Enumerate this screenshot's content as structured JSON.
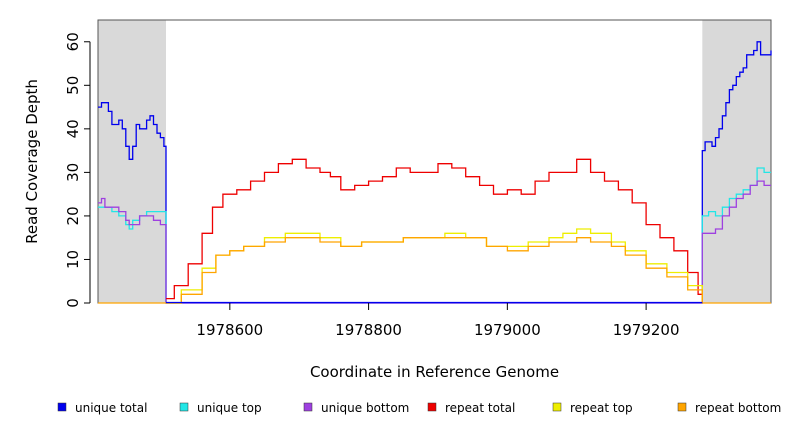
{
  "chart_data": {
    "type": "line",
    "title": "",
    "xlabel": "Coordinate in Reference Genome",
    "ylabel": "Read Coverage Depth",
    "xlim": [
      1978410,
      1979380
    ],
    "ylim": [
      0,
      65
    ],
    "x_ticks": [
      1978600,
      1978800,
      1979000,
      1979200
    ],
    "y_ticks": [
      0,
      10,
      20,
      30,
      40,
      50,
      60
    ],
    "shaded_regions": [
      {
        "x0": 1978410,
        "x1": 1978508
      },
      {
        "x0": 1979281,
        "x1": 1979380
      }
    ],
    "legend_position": "bottom",
    "series": [
      {
        "name": "unique total",
        "color": "#0000ee",
        "points": [
          [
            1978410,
            45
          ],
          [
            1978415,
            46
          ],
          [
            1978420,
            46
          ],
          [
            1978425,
            44
          ],
          [
            1978430,
            41
          ],
          [
            1978435,
            41
          ],
          [
            1978440,
            42
          ],
          [
            1978445,
            40
          ],
          [
            1978450,
            36
          ],
          [
            1978455,
            33
          ],
          [
            1978460,
            36
          ],
          [
            1978465,
            41
          ],
          [
            1978470,
            40
          ],
          [
            1978475,
            40
          ],
          [
            1978480,
            42
          ],
          [
            1978485,
            43
          ],
          [
            1978490,
            41
          ],
          [
            1978495,
            39
          ],
          [
            1978500,
            38
          ],
          [
            1978505,
            36
          ],
          [
            1978508,
            35
          ],
          [
            1978508,
            0
          ],
          [
            1979281,
            0
          ],
          [
            1979281,
            35
          ],
          [
            1979285,
            37
          ],
          [
            1979290,
            37
          ],
          [
            1979295,
            36
          ],
          [
            1979300,
            38
          ],
          [
            1979305,
            40
          ],
          [
            1979310,
            43
          ],
          [
            1979315,
            46
          ],
          [
            1979320,
            49
          ],
          [
            1979325,
            50
          ],
          [
            1979330,
            52
          ],
          [
            1979335,
            53
          ],
          [
            1979340,
            54
          ],
          [
            1979345,
            57
          ],
          [
            1979350,
            57
          ],
          [
            1979355,
            58
          ],
          [
            1979360,
            60
          ],
          [
            1979365,
            57
          ],
          [
            1979370,
            57
          ],
          [
            1979380,
            58
          ]
        ]
      },
      {
        "name": "unique top",
        "color": "#22e6e6",
        "points": [
          [
            1978410,
            22
          ],
          [
            1978420,
            22
          ],
          [
            1978430,
            21
          ],
          [
            1978440,
            20
          ],
          [
            1978450,
            18
          ],
          [
            1978455,
            17
          ],
          [
            1978460,
            19
          ],
          [
            1978470,
            20
          ],
          [
            1978480,
            21
          ],
          [
            1978490,
            21
          ],
          [
            1978500,
            21
          ],
          [
            1978508,
            20
          ],
          [
            1978508,
            0
          ],
          [
            1979281,
            0
          ],
          [
            1979281,
            20
          ],
          [
            1979290,
            21
          ],
          [
            1979300,
            20
          ],
          [
            1979310,
            22
          ],
          [
            1979320,
            24
          ],
          [
            1979330,
            25
          ],
          [
            1979340,
            26
          ],
          [
            1979350,
            27
          ],
          [
            1979360,
            31
          ],
          [
            1979370,
            30
          ],
          [
            1979380,
            30
          ]
        ]
      },
      {
        "name": "unique bottom",
        "color": "#9e40e0",
        "points": [
          [
            1978410,
            23
          ],
          [
            1978415,
            24
          ],
          [
            1978420,
            22
          ],
          [
            1978430,
            22
          ],
          [
            1978440,
            21
          ],
          [
            1978450,
            19
          ],
          [
            1978455,
            18
          ],
          [
            1978460,
            18
          ],
          [
            1978470,
            20
          ],
          [
            1978480,
            20
          ],
          [
            1978490,
            19
          ],
          [
            1978500,
            18
          ],
          [
            1978508,
            17
          ],
          [
            1978508,
            0
          ],
          [
            1979281,
            0
          ],
          [
            1979281,
            16
          ],
          [
            1979290,
            16
          ],
          [
            1979300,
            17
          ],
          [
            1979310,
            20
          ],
          [
            1979320,
            22
          ],
          [
            1979330,
            24
          ],
          [
            1979340,
            25
          ],
          [
            1979350,
            27
          ],
          [
            1979360,
            28
          ],
          [
            1979370,
            27
          ],
          [
            1979380,
            27
          ]
        ]
      },
      {
        "name": "repeat total",
        "color": "#ee0000",
        "points": [
          [
            1978508,
            1
          ],
          [
            1978520,
            4
          ],
          [
            1978540,
            9
          ],
          [
            1978560,
            16
          ],
          [
            1978575,
            22
          ],
          [
            1978590,
            25
          ],
          [
            1978610,
            26
          ],
          [
            1978630,
            28
          ],
          [
            1978650,
            30
          ],
          [
            1978670,
            32
          ],
          [
            1978690,
            33
          ],
          [
            1978710,
            31
          ],
          [
            1978730,
            30
          ],
          [
            1978745,
            29
          ],
          [
            1978760,
            26
          ],
          [
            1978780,
            27
          ],
          [
            1978800,
            28
          ],
          [
            1978820,
            29
          ],
          [
            1978840,
            31
          ],
          [
            1978860,
            30
          ],
          [
            1978880,
            30
          ],
          [
            1978900,
            32
          ],
          [
            1978920,
            31
          ],
          [
            1978940,
            29
          ],
          [
            1978960,
            27
          ],
          [
            1978980,
            25
          ],
          [
            1979000,
            26
          ],
          [
            1979020,
            25
          ],
          [
            1979040,
            28
          ],
          [
            1979060,
            30
          ],
          [
            1979080,
            30
          ],
          [
            1979100,
            33
          ],
          [
            1979120,
            30
          ],
          [
            1979140,
            28
          ],
          [
            1979160,
            26
          ],
          [
            1979180,
            23
          ],
          [
            1979200,
            18
          ],
          [
            1979220,
            15
          ],
          [
            1979240,
            12
          ],
          [
            1979260,
            7
          ],
          [
            1979275,
            2
          ],
          [
            1979281,
            0
          ]
        ]
      },
      {
        "name": "repeat top",
        "color": "#eeee00",
        "points": [
          [
            1978508,
            0
          ],
          [
            1978530,
            3
          ],
          [
            1978560,
            8
          ],
          [
            1978580,
            11
          ],
          [
            1978600,
            12
          ],
          [
            1978620,
            13
          ],
          [
            1978650,
            15
          ],
          [
            1978680,
            16
          ],
          [
            1978700,
            16
          ],
          [
            1978730,
            15
          ],
          [
            1978760,
            13
          ],
          [
            1978790,
            14
          ],
          [
            1978820,
            14
          ],
          [
            1978850,
            15
          ],
          [
            1978880,
            15
          ],
          [
            1978910,
            16
          ],
          [
            1978940,
            15
          ],
          [
            1978970,
            13
          ],
          [
            1979000,
            13
          ],
          [
            1979030,
            14
          ],
          [
            1979060,
            15
          ],
          [
            1979080,
            16
          ],
          [
            1979100,
            17
          ],
          [
            1979120,
            16
          ],
          [
            1979150,
            14
          ],
          [
            1979170,
            12
          ],
          [
            1979200,
            9
          ],
          [
            1979230,
            7
          ],
          [
            1979260,
            4
          ],
          [
            1979281,
            0
          ]
        ]
      },
      {
        "name": "repeat bottom",
        "color": "#ffa500",
        "points": [
          [
            1978410,
            0
          ],
          [
            1978508,
            0
          ],
          [
            1978530,
            2
          ],
          [
            1978560,
            7
          ],
          [
            1978580,
            11
          ],
          [
            1978600,
            12
          ],
          [
            1978620,
            13
          ],
          [
            1978650,
            14
          ],
          [
            1978680,
            15
          ],
          [
            1978700,
            15
          ],
          [
            1978730,
            14
          ],
          [
            1978760,
            13
          ],
          [
            1978790,
            14
          ],
          [
            1978820,
            14
          ],
          [
            1978850,
            15
          ],
          [
            1978880,
            15
          ],
          [
            1978910,
            15
          ],
          [
            1978940,
            15
          ],
          [
            1978970,
            13
          ],
          [
            1979000,
            12
          ],
          [
            1979030,
            13
          ],
          [
            1979060,
            14
          ],
          [
            1979080,
            14
          ],
          [
            1979100,
            15
          ],
          [
            1979120,
            14
          ],
          [
            1979150,
            13
          ],
          [
            1979170,
            11
          ],
          [
            1979200,
            8
          ],
          [
            1979230,
            6
          ],
          [
            1979260,
            3
          ],
          [
            1979281,
            0
          ],
          [
            1979380,
            0
          ]
        ]
      }
    ]
  }
}
